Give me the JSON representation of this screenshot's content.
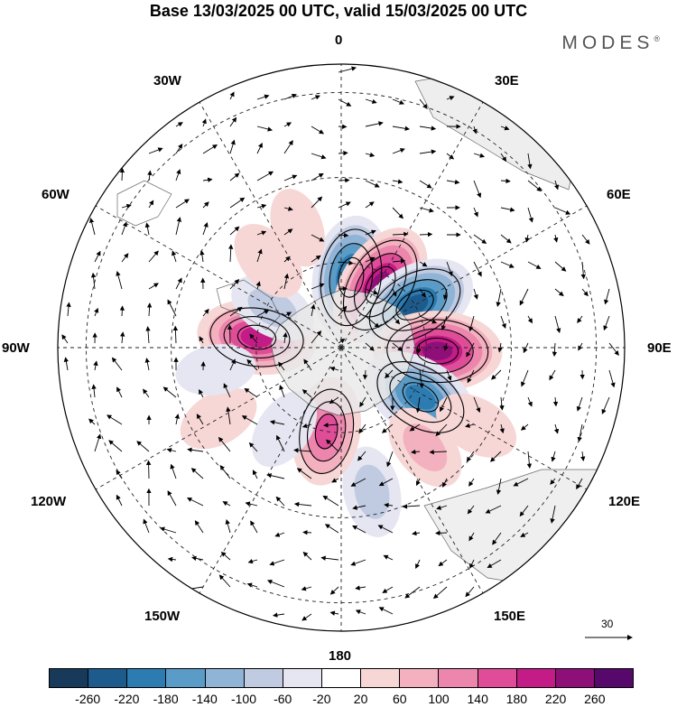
{
  "title": "Base 13/03/2025 00 UTC, valid 15/03/2025 00 UTC",
  "brand": "MODES",
  "brand_mark": "®",
  "labels": {
    "lon_0": "0",
    "lon_30e": "30E",
    "lon_60e": "60E",
    "lon_90e": "90E",
    "lon_120e": "120E",
    "lon_150e": "150E",
    "lon_180": "180",
    "lon_150w": "150W",
    "lon_120w": "120W",
    "lon_90w": "90W",
    "lon_60w": "60W",
    "lon_30w": "30W"
  },
  "reference_vector": "30",
  "legend": {
    "colors": [
      "#183a5a",
      "#1d5b8c",
      "#2d7cb1",
      "#5a9bc8",
      "#8fb4d6",
      "#c0cbe2",
      "#e6e6f2",
      "#ffffff",
      "#f7d6d6",
      "#f3b1bf",
      "#ec86ad",
      "#df4d98",
      "#c41c86",
      "#8f0f78",
      "#57096b"
    ],
    "ticks": [
      "-260",
      "-220",
      "-180",
      "-140",
      "-100",
      "-60",
      "-20",
      "20",
      "60",
      "100",
      "140",
      "180",
      "220",
      "260"
    ]
  },
  "anomaly_blobs": [
    {
      "lon": 8,
      "colat": 25,
      "value": -240
    },
    {
      "lon": 32,
      "colat": 26,
      "value": 250
    },
    {
      "lon": 60,
      "colat": 30,
      "value": -250
    },
    {
      "lon": 92,
      "colat": 34,
      "value": 265
    },
    {
      "lon": 122,
      "colat": 33,
      "value": -230
    },
    {
      "lon": 140,
      "colat": 46,
      "value": 90
    },
    {
      "lon": 120,
      "colat": 55,
      "value": 70
    },
    {
      "lon": 168,
      "colat": 52,
      "value": -90
    },
    {
      "lon": 190,
      "colat": 30,
      "value": 170
    },
    {
      "lon": 215,
      "colat": 35,
      "value": -60
    },
    {
      "lon": 240,
      "colat": 50,
      "value": 50
    },
    {
      "lon": 277,
      "colat": 30,
      "value": 220
    },
    {
      "lon": 300,
      "colat": 28,
      "value": -80
    },
    {
      "lon": 320,
      "colat": 40,
      "value": 60
    },
    {
      "lon": 340,
      "colat": 45,
      "value": 40
    },
    {
      "lon": 260,
      "colat": 45,
      "value": -40
    }
  ]
}
